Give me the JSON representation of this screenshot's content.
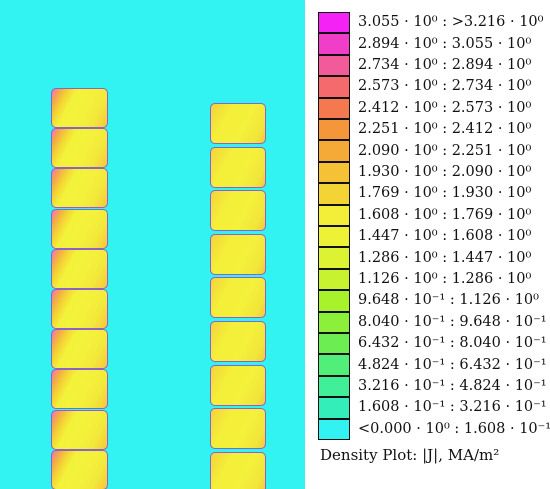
{
  "plot": {
    "background_color": "#33f3f2",
    "left_column_coil_count": 10,
    "right_column_coil_count": 9
  },
  "legend": {
    "caption": "Density Plot: |J|, MA/m²",
    "entries": [
      {
        "label": "3.055 · 10⁰ : >3.216 · 10⁰",
        "color": "#f422f4"
      },
      {
        "label": "2.894 · 10⁰ : 3.055 · 10⁰",
        "color": "#f03ec8"
      },
      {
        "label": "2.734 · 10⁰ : 2.894 · 10⁰",
        "color": "#f25a9a"
      },
      {
        "label": "2.573 · 10⁰ : 2.734 · 10⁰",
        "color": "#f56a6c"
      },
      {
        "label": "2.412 · 10⁰ : 2.573 · 10⁰",
        "color": "#f5794e"
      },
      {
        "label": "2.251 · 10⁰ : 2.412 · 10⁰",
        "color": "#f5963b"
      },
      {
        "label": "2.090 · 10⁰ : 2.251 · 10⁰",
        "color": "#f5a936"
      },
      {
        "label": "1.930 · 10⁰ : 2.090 · 10⁰",
        "color": "#f5c235"
      },
      {
        "label": "1.769 · 10⁰ : 1.930 · 10⁰",
        "color": "#f4d335"
      },
      {
        "label": "1.608 · 10⁰ : 1.769 · 10⁰",
        "color": "#f3ee37"
      },
      {
        "label": "1.447 · 10⁰ : 1.608 · 10⁰",
        "color": "#eef236"
      },
      {
        "label": "1.286 · 10⁰ : 1.447 · 10⁰",
        "color": "#dcf232"
      },
      {
        "label": "1.126 · 10⁰ : 1.286 · 10⁰",
        "color": "#c6f22f"
      },
      {
        "label": "9.648 · 10⁻¹ : 1.126 · 10⁰",
        "color": "#a8f22c"
      },
      {
        "label": "8.040 · 10⁻¹ : 9.648 · 10⁻¹",
        "color": "#8cf03a"
      },
      {
        "label": "6.432 · 10⁻¹ : 8.040 · 10⁻¹",
        "color": "#6cee52"
      },
      {
        "label": "4.824 · 10⁻¹ : 6.432 · 10⁻¹",
        "color": "#52ee7a"
      },
      {
        "label": "3.216 · 10⁻¹ : 4.824 · 10⁻¹",
        "color": "#41ef98"
      },
      {
        "label": "1.608 · 10⁻¹ : 3.216 · 10⁻¹",
        "color": "#33eeb8"
      },
      {
        "label": "<0.000 · 10⁰ : 1.608 · 10⁻¹",
        "color": "#33f3f2"
      }
    ]
  }
}
